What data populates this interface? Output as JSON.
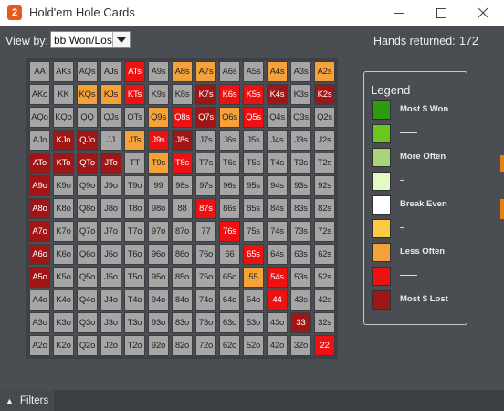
{
  "window": {
    "title": "Hold'em Hole Cards",
    "app_icon_letter": "2",
    "controls": [
      "minimize",
      "maximize",
      "close"
    ]
  },
  "toolbar": {
    "view_by_label": "View by:",
    "view_by_value": "bb Won/Lost",
    "hands_label": "Hands returned:",
    "hands_value": "172"
  },
  "colors": {
    "grey": "#a6a6a6",
    "dark_red": "#a01515",
    "red": "#ee1111",
    "orange": "#f5a23a",
    "green_dark": "#2e9a10",
    "green": "#6bc71e",
    "green_light": "#a9d57a",
    "green_pale": "#e4f9c6",
    "white": "#ffffff",
    "yellow": "#fbcb44"
  },
  "grid": {
    "rows": [
      [
        [
          "AA",
          "grey"
        ],
        [
          "AKs",
          "grey"
        ],
        [
          "AQs",
          "grey"
        ],
        [
          "AJs",
          "grey"
        ],
        [
          "ATs",
          "red"
        ],
        [
          "A9s",
          "grey"
        ],
        [
          "A8s",
          "orange"
        ],
        [
          "A7s",
          "orange"
        ],
        [
          "A6s",
          "grey"
        ],
        [
          "A5s",
          "grey"
        ],
        [
          "A4s",
          "orange"
        ],
        [
          "A3s",
          "grey"
        ],
        [
          "A2s",
          "orange"
        ]
      ],
      [
        [
          "AKo",
          "grey"
        ],
        [
          "KK",
          "grey"
        ],
        [
          "KQs",
          "orange"
        ],
        [
          "KJs",
          "orange"
        ],
        [
          "KTs",
          "red"
        ],
        [
          "K9s",
          "grey"
        ],
        [
          "K8s",
          "grey"
        ],
        [
          "K7s",
          "dark_red"
        ],
        [
          "K6s",
          "red"
        ],
        [
          "K5s",
          "red"
        ],
        [
          "K4s",
          "dark_red"
        ],
        [
          "K3s",
          "grey"
        ],
        [
          "K2s",
          "dark_red"
        ]
      ],
      [
        [
          "AQo",
          "grey"
        ],
        [
          "KQo",
          "grey"
        ],
        [
          "QQ",
          "grey"
        ],
        [
          "QJs",
          "grey"
        ],
        [
          "QTs",
          "grey"
        ],
        [
          "Q9s",
          "orange"
        ],
        [
          "Q8s",
          "red"
        ],
        [
          "Q7s",
          "dark_red"
        ],
        [
          "Q6s",
          "orange"
        ],
        [
          "Q5s",
          "red"
        ],
        [
          "Q4s",
          "grey"
        ],
        [
          "Q3s",
          "grey"
        ],
        [
          "Q2s",
          "grey"
        ]
      ],
      [
        [
          "AJo",
          "grey"
        ],
        [
          "KJo",
          "dark_red"
        ],
        [
          "QJo",
          "dark_red"
        ],
        [
          "JJ",
          "grey"
        ],
        [
          "JTs",
          "orange"
        ],
        [
          "J9s",
          "red"
        ],
        [
          "J8s",
          "dark_red"
        ],
        [
          "J7s",
          "grey"
        ],
        [
          "J6s",
          "grey"
        ],
        [
          "J5s",
          "grey"
        ],
        [
          "J4s",
          "grey"
        ],
        [
          "J3s",
          "grey"
        ],
        [
          "J2s",
          "grey"
        ]
      ],
      [
        [
          "ATo",
          "dark_red"
        ],
        [
          "KTo",
          "dark_red"
        ],
        [
          "QTo",
          "dark_red"
        ],
        [
          "JTo",
          "dark_red"
        ],
        [
          "TT",
          "grey"
        ],
        [
          "T9s",
          "orange"
        ],
        [
          "T8s",
          "red"
        ],
        [
          "T7s",
          "grey"
        ],
        [
          "T6s",
          "grey"
        ],
        [
          "T5s",
          "grey"
        ],
        [
          "T4s",
          "grey"
        ],
        [
          "T3s",
          "grey"
        ],
        [
          "T2s",
          "grey"
        ]
      ],
      [
        [
          "A9o",
          "dark_red"
        ],
        [
          "K9o",
          "grey"
        ],
        [
          "Q9o",
          "grey"
        ],
        [
          "J9o",
          "grey"
        ],
        [
          "T9o",
          "grey"
        ],
        [
          "99",
          "grey"
        ],
        [
          "98s",
          "grey"
        ],
        [
          "97s",
          "grey"
        ],
        [
          "96s",
          "grey"
        ],
        [
          "95s",
          "grey"
        ],
        [
          "94s",
          "grey"
        ],
        [
          "93s",
          "grey"
        ],
        [
          "92s",
          "grey"
        ]
      ],
      [
        [
          "A8o",
          "dark_red"
        ],
        [
          "K8o",
          "grey"
        ],
        [
          "Q8o",
          "grey"
        ],
        [
          "J8o",
          "grey"
        ],
        [
          "T8o",
          "grey"
        ],
        [
          "98o",
          "grey"
        ],
        [
          "88",
          "grey"
        ],
        [
          "87s",
          "red"
        ],
        [
          "86s",
          "grey"
        ],
        [
          "85s",
          "grey"
        ],
        [
          "84s",
          "grey"
        ],
        [
          "83s",
          "grey"
        ],
        [
          "82s",
          "grey"
        ]
      ],
      [
        [
          "A7o",
          "dark_red"
        ],
        [
          "K7o",
          "grey"
        ],
        [
          "Q7o",
          "grey"
        ],
        [
          "J7o",
          "grey"
        ],
        [
          "T7o",
          "grey"
        ],
        [
          "97o",
          "grey"
        ],
        [
          "87o",
          "grey"
        ],
        [
          "77",
          "grey"
        ],
        [
          "76s",
          "red"
        ],
        [
          "75s",
          "grey"
        ],
        [
          "74s",
          "grey"
        ],
        [
          "73s",
          "grey"
        ],
        [
          "72s",
          "grey"
        ]
      ],
      [
        [
          "A6o",
          "dark_red"
        ],
        [
          "K6o",
          "grey"
        ],
        [
          "Q6o",
          "grey"
        ],
        [
          "J6o",
          "grey"
        ],
        [
          "T6o",
          "grey"
        ],
        [
          "96o",
          "grey"
        ],
        [
          "86o",
          "grey"
        ],
        [
          "76o",
          "grey"
        ],
        [
          "66",
          "grey"
        ],
        [
          "65s",
          "red"
        ],
        [
          "64s",
          "grey"
        ],
        [
          "63s",
          "grey"
        ],
        [
          "62s",
          "grey"
        ]
      ],
      [
        [
          "A5o",
          "dark_red"
        ],
        [
          "K5o",
          "grey"
        ],
        [
          "Q5o",
          "grey"
        ],
        [
          "J5o",
          "grey"
        ],
        [
          "T5o",
          "grey"
        ],
        [
          "95o",
          "grey"
        ],
        [
          "85o",
          "grey"
        ],
        [
          "75o",
          "grey"
        ],
        [
          "65o",
          "grey"
        ],
        [
          "55",
          "orange"
        ],
        [
          "54s",
          "red"
        ],
        [
          "53s",
          "grey"
        ],
        [
          "52s",
          "grey"
        ]
      ],
      [
        [
          "A4o",
          "grey"
        ],
        [
          "K4o",
          "grey"
        ],
        [
          "Q4o",
          "grey"
        ],
        [
          "J4o",
          "grey"
        ],
        [
          "T4o",
          "grey"
        ],
        [
          "94o",
          "grey"
        ],
        [
          "84o",
          "grey"
        ],
        [
          "74o",
          "grey"
        ],
        [
          "64o",
          "grey"
        ],
        [
          "54o",
          "grey"
        ],
        [
          "44",
          "red"
        ],
        [
          "43s",
          "grey"
        ],
        [
          "42s",
          "grey"
        ]
      ],
      [
        [
          "A3o",
          "grey"
        ],
        [
          "K3o",
          "grey"
        ],
        [
          "Q3o",
          "grey"
        ],
        [
          "J3o",
          "grey"
        ],
        [
          "T3o",
          "grey"
        ],
        [
          "93o",
          "grey"
        ],
        [
          "83o",
          "grey"
        ],
        [
          "73o",
          "grey"
        ],
        [
          "63o",
          "grey"
        ],
        [
          "53o",
          "grey"
        ],
        [
          "43o",
          "grey"
        ],
        [
          "33",
          "dark_red"
        ],
        [
          "32s",
          "grey"
        ]
      ],
      [
        [
          "A2o",
          "grey"
        ],
        [
          "K2o",
          "grey"
        ],
        [
          "Q2o",
          "grey"
        ],
        [
          "J2o",
          "grey"
        ],
        [
          "T2o",
          "grey"
        ],
        [
          "92o",
          "grey"
        ],
        [
          "82o",
          "grey"
        ],
        [
          "72o",
          "grey"
        ],
        [
          "62o",
          "grey"
        ],
        [
          "52o",
          "grey"
        ],
        [
          "42o",
          "grey"
        ],
        [
          "32o",
          "grey"
        ],
        [
          "22",
          "red"
        ]
      ]
    ]
  },
  "legend": {
    "title": "Legend",
    "items": [
      {
        "label": "Most $ Won",
        "color": "green_dark"
      },
      {
        "label": "——",
        "color": "green"
      },
      {
        "label": "More Often",
        "color": "green_light"
      },
      {
        "label": "–",
        "color": "green_pale"
      },
      {
        "label": "Break Even",
        "color": "white"
      },
      {
        "label": "–",
        "color": "yellow"
      },
      {
        "label": "Less Often",
        "color": "orange"
      },
      {
        "label": "——",
        "color": "red"
      },
      {
        "label": "Most $ Lost",
        "color": "dark_red"
      }
    ]
  },
  "footer": {
    "filters_label": "Filters"
  }
}
